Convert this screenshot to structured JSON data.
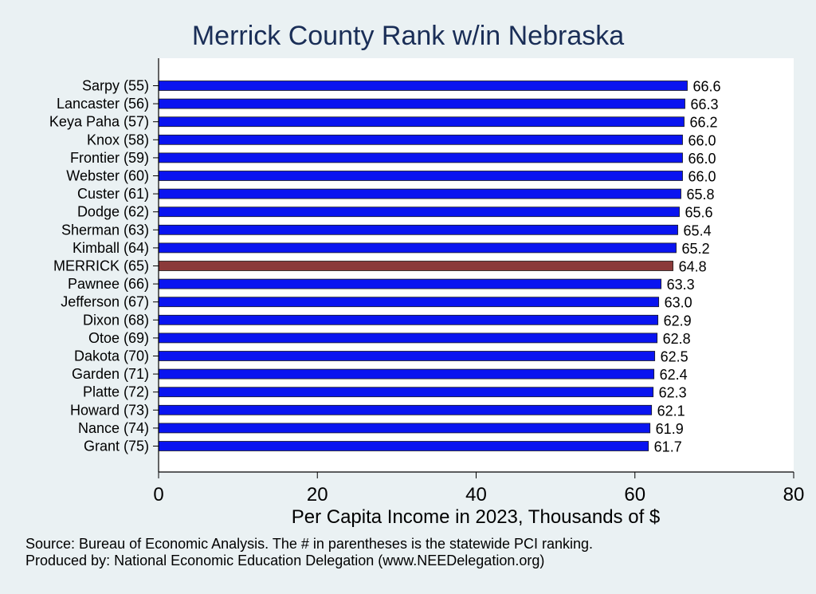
{
  "chart_data": {
    "type": "bar",
    "orientation": "horizontal",
    "title": "Merrick County Rank w/in Nebraska",
    "xlabel": "Per Capita Income in 2023, Thousands of $",
    "ylabel": "",
    "xlim": [
      0,
      80
    ],
    "xticks": [
      "0",
      "20",
      "40",
      "60",
      "80"
    ],
    "grid": false,
    "categories": [
      "Sarpy (55)",
      "Lancaster (56)",
      "Keya Paha (57)",
      "Knox (58)",
      "Frontier (59)",
      "Webster (60)",
      "Custer (61)",
      "Dodge (62)",
      "Sherman (63)",
      "Kimball (64)",
      "MERRICK (65)",
      "Pawnee (66)",
      "Jefferson (67)",
      "Dixon (68)",
      "Otoe (69)",
      "Dakota (70)",
      "Garden (71)",
      "Platte (72)",
      "Howard (73)",
      "Nance (74)",
      "Grant (75)"
    ],
    "values": [
      66.6,
      66.3,
      66.2,
      66.0,
      66.0,
      66.0,
      65.8,
      65.6,
      65.4,
      65.2,
      64.8,
      63.3,
      63.0,
      62.9,
      62.8,
      62.5,
      62.4,
      62.3,
      62.1,
      61.9,
      61.7
    ],
    "value_labels": [
      "66.6",
      "66.3",
      "66.2",
      "66.0",
      "66.0",
      "66.0",
      "65.8",
      "65.6",
      "65.4",
      "65.2",
      "64.8",
      "63.3",
      "63.0",
      "62.9",
      "62.8",
      "62.5",
      "62.4",
      "62.3",
      "62.1",
      "61.9",
      "61.7"
    ],
    "highlight_category": "MERRICK (65)",
    "colors": {
      "bar": "#0a14f0",
      "highlight": "#8b3a3a",
      "plot_background": "#ffffff",
      "page_background": "#eaf1f3",
      "title": "#1a2e57"
    }
  },
  "notes": {
    "source": "Source: Bureau of Economic Analysis. The # in parentheses is the statewide PCI ranking.",
    "produced_by": "Produced by: National Economic Education Delegation (www.NEEDelegation.org)"
  }
}
